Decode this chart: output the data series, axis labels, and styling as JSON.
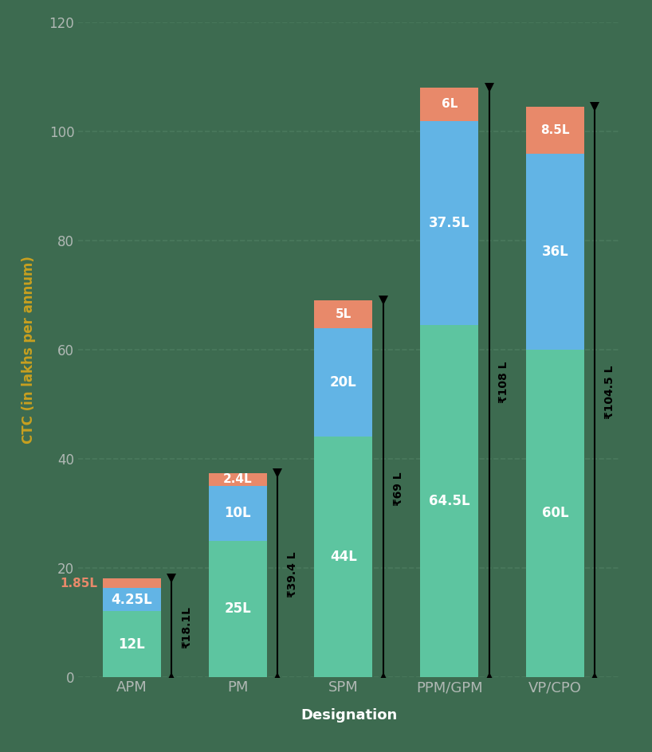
{
  "categories": [
    "APM",
    "PM",
    "SPM",
    "PPM/GPM",
    "VP/CPO"
  ],
  "green_base": [
    12,
    25,
    44,
    64.5,
    60
  ],
  "blue_mid": [
    4.25,
    10,
    20,
    37.5,
    36
  ],
  "red_top": [
    1.85,
    2.4,
    5,
    6,
    8.5
  ],
  "green_labels": [
    "12L",
    "25L",
    "44L",
    "64.5L",
    "60L"
  ],
  "blue_labels": [
    "4.25L",
    "10L",
    "20L",
    "37.5L",
    "36L"
  ],
  "red_labels": [
    "1.85L",
    "2.4L",
    "5L",
    "6L",
    "8.5L"
  ],
  "total_labels": [
    "₹18.1L",
    "₹39.4 L",
    "₹69 L",
    "₹108 L",
    "₹104.5 L"
  ],
  "totals": [
    18.1,
    39.4,
    69,
    108,
    104.5
  ],
  "green_color": "#5DC5A0",
  "blue_color": "#62B4E5",
  "red_color": "#E8896A",
  "bg_color": "#3d6b50",
  "grid_color": "#4d7d60",
  "text_color": "white",
  "tick_label_color": "#b0b8b4",
  "ylabel_color": "#c8a020",
  "xlabel_color": "white",
  "title": "CTC (in lakhs per annum)",
  "xlabel": "Designation",
  "ylim": [
    0,
    120
  ],
  "yticks": [
    0,
    20,
    40,
    60,
    80,
    100,
    120
  ],
  "bar_width": 0.55,
  "arrow_color": "black",
  "total_label_color": "black"
}
